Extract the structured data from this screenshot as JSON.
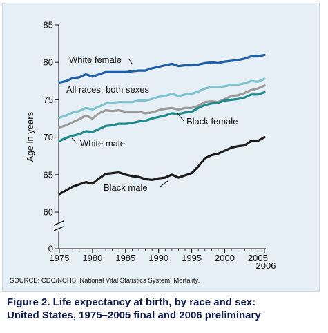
{
  "source": "SOURCE: CDC/NCHS, National Vital Statistics System, Mortality.",
  "caption_line1": "Figure 2. Life expectancy at birth, by race and sex:",
  "caption_line2": "United States, 1975–2005 final and 2006 preliminary",
  "chart_data": {
    "type": "line",
    "title": "",
    "xlabel": "",
    "ylabel": "Age in years",
    "x": [
      1975,
      1976,
      1977,
      1978,
      1979,
      1980,
      1981,
      1982,
      1983,
      1984,
      1985,
      1986,
      1987,
      1988,
      1989,
      1990,
      1991,
      1992,
      1993,
      1994,
      1995,
      1996,
      1997,
      1998,
      1999,
      2000,
      2001,
      2002,
      2003,
      2004,
      2005,
      2006
    ],
    "xlim": [
      1975,
      2006
    ],
    "ylim": [
      60,
      85
    ],
    "y_ticks": [
      "0",
      "60",
      "65",
      "70",
      "75",
      "80",
      "85"
    ],
    "x_ticks": [
      "1975",
      "1980",
      "1985",
      "1990",
      "1995",
      "2000",
      "2005",
      "2006"
    ],
    "axis_break": true,
    "series": [
      {
        "name": "White female",
        "color": "#1f5fa6",
        "values": [
          77.3,
          77.5,
          77.9,
          78.0,
          78.4,
          78.1,
          78.4,
          78.7,
          78.7,
          78.7,
          78.7,
          78.8,
          78.9,
          78.9,
          79.2,
          79.4,
          79.6,
          79.8,
          79.5,
          79.6,
          79.6,
          79.7,
          79.9,
          80.0,
          79.9,
          80.1,
          80.2,
          80.3,
          80.5,
          80.8,
          80.8,
          81.0
        ]
      },
      {
        "name": "All races, both sexes",
        "color": "#7fc3cf",
        "values": [
          72.6,
          72.9,
          73.3,
          73.5,
          73.9,
          73.7,
          74.1,
          74.5,
          74.6,
          74.7,
          74.7,
          74.7,
          74.9,
          74.9,
          75.1,
          75.4,
          75.5,
          75.8,
          75.5,
          75.7,
          75.8,
          76.1,
          76.5,
          76.7,
          76.7,
          76.8,
          77.0,
          77.0,
          77.2,
          77.5,
          77.4,
          77.8
        ]
      },
      {
        "name": "Black female",
        "color": "#9a9a9a",
        "values": [
          71.3,
          71.6,
          72.0,
          72.4,
          72.9,
          72.5,
          73.2,
          73.6,
          73.5,
          73.6,
          73.4,
          73.4,
          73.4,
          73.2,
          73.3,
          73.6,
          73.8,
          73.9,
          73.7,
          73.9,
          73.9,
          74.2,
          74.7,
          74.8,
          74.7,
          75.1,
          75.5,
          75.6,
          75.9,
          76.3,
          76.5,
          76.9
        ]
      },
      {
        "name": "White male",
        "color": "#1f8a8a",
        "values": [
          69.5,
          69.9,
          70.2,
          70.4,
          70.8,
          70.7,
          71.1,
          71.5,
          71.6,
          71.8,
          71.8,
          71.9,
          72.1,
          72.2,
          72.5,
          72.7,
          72.9,
          73.2,
          73.1,
          73.3,
          73.4,
          73.9,
          74.3,
          74.5,
          74.6,
          74.9,
          75.0,
          75.1,
          75.3,
          75.7,
          75.7,
          76.0
        ]
      },
      {
        "name": "Black male",
        "color": "#1a1a1a",
        "values": [
          62.4,
          62.9,
          63.4,
          63.7,
          64.0,
          63.8,
          64.5,
          65.1,
          65.2,
          65.3,
          65.0,
          64.8,
          64.7,
          64.4,
          64.3,
          64.5,
          64.6,
          65.0,
          64.6,
          64.9,
          65.2,
          66.1,
          67.2,
          67.6,
          67.8,
          68.2,
          68.6,
          68.8,
          68.9,
          69.5,
          69.5,
          70.0
        ]
      }
    ]
  }
}
